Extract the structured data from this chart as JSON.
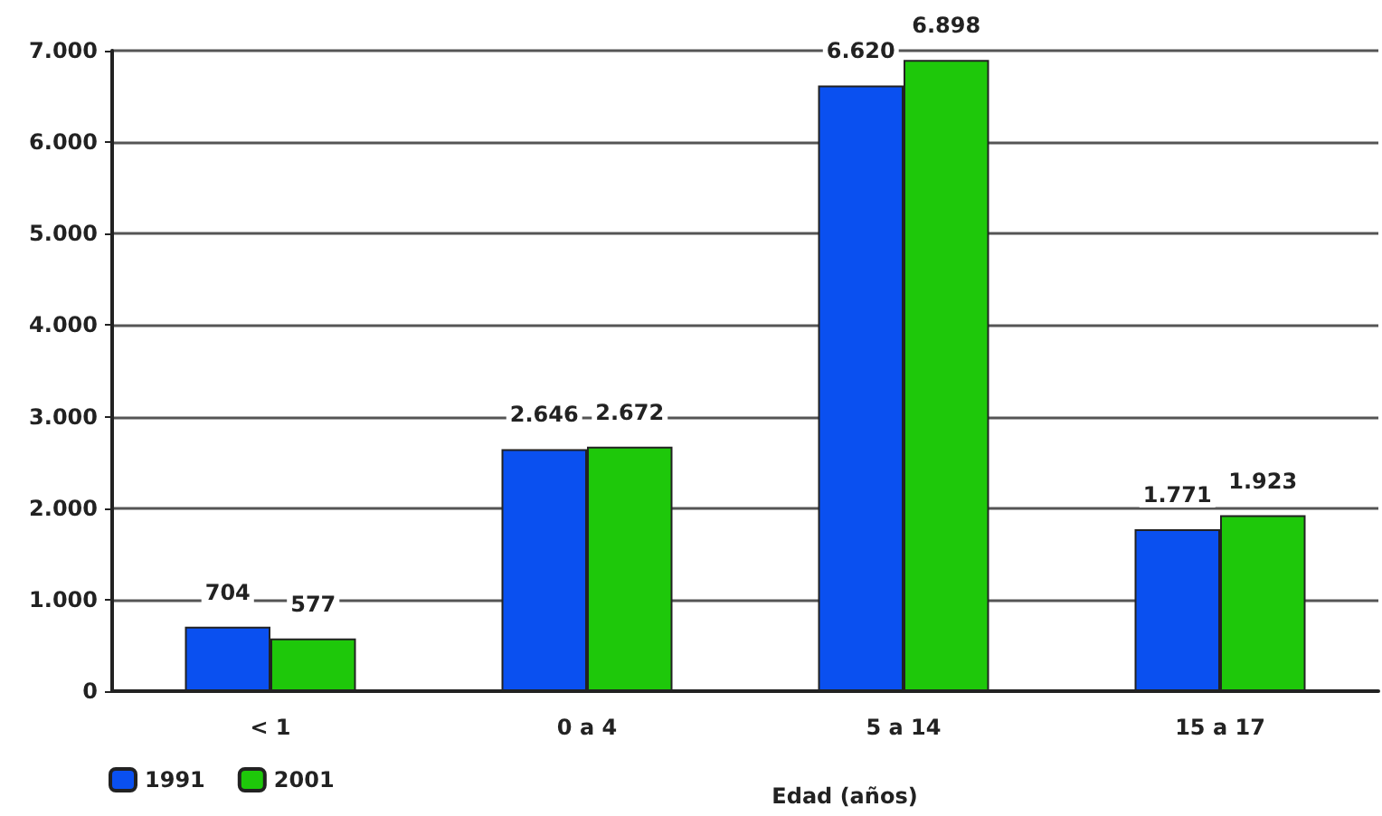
{
  "chart_data": {
    "type": "bar",
    "xlabel": "Edad (años)",
    "categories": [
      "< 1",
      "0 a 4",
      "5 a 14",
      "15 a 17"
    ],
    "series": [
      {
        "name": "1991",
        "color": "#0a50f0",
        "values": [
          704,
          2646,
          6620,
          1771
        ],
        "value_labels": [
          "704",
          "2.646",
          "6.620",
          "1.771"
        ]
      },
      {
        "name": "2001",
        "color": "#1ec80a",
        "values": [
          577,
          2672,
          6898,
          1923
        ],
        "value_labels": [
          "577",
          "2.672",
          "6.898",
          "1.923"
        ]
      }
    ],
    "ylim": [
      0,
      7000
    ],
    "yticks": [
      0,
      {
        "value": 1000,
        "label": "1.000"
      },
      {
        "value": 2000,
        "label": "2.000"
      },
      {
        "value": 3000,
        "label": "3.000"
      },
      {
        "value": 4000,
        "label": "4.000"
      },
      {
        "value": 5000,
        "label": "5.000"
      },
      {
        "value": 6000,
        "label": "6.000"
      },
      {
        "value": 7000,
        "label": "7.000"
      }
    ],
    "grid": "y",
    "legend": "bottom left"
  }
}
